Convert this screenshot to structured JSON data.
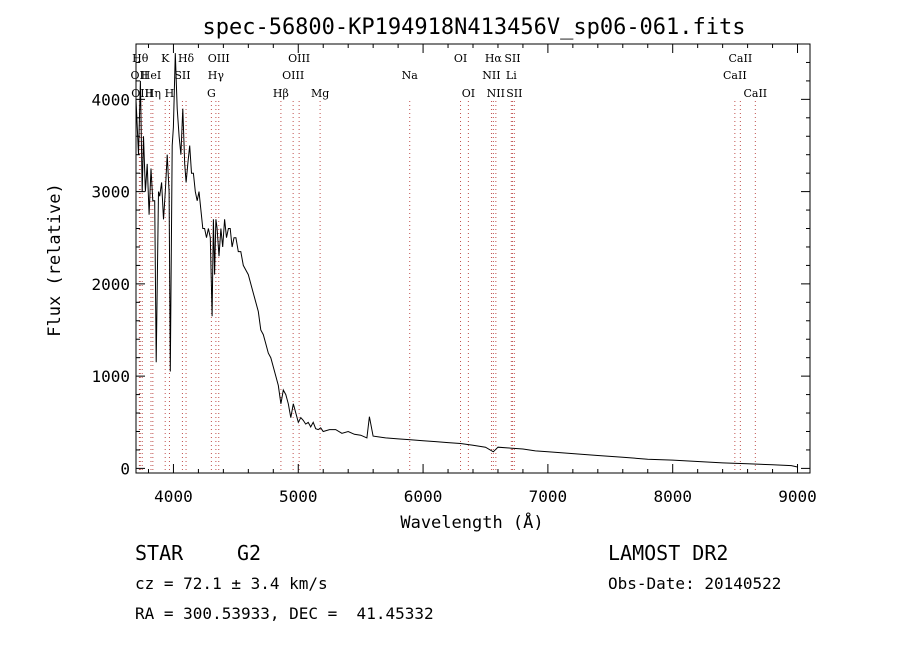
{
  "chart_data": {
    "type": "line",
    "title": "spec-56800-KP194918N413456V_sp06-061.fits",
    "xlabel": "Wavelength (Å)",
    "ylabel": "Flux (relative)",
    "xlim": [
      3700,
      9100
    ],
    "ylim": [
      -50,
      4600
    ],
    "x_ticks": [
      4000,
      5000,
      6000,
      7000,
      8000,
      9000
    ],
    "x_tick_labels": [
      "4000",
      "5000",
      "6000",
      "7000",
      "8000",
      "9000"
    ],
    "y_ticks": [
      0,
      1000,
      2000,
      3000,
      4000
    ],
    "y_tick_labels": [
      "0",
      "1000",
      "2000",
      "3000",
      "4000"
    ],
    "series": [
      {
        "name": "flux",
        "x": [
          3700,
          3720,
          3735,
          3750,
          3760,
          3775,
          3790,
          3805,
          3820,
          3835,
          3850,
          3862,
          3880,
          3890,
          3905,
          3920,
          3935,
          3950,
          3965,
          3975,
          3990,
          4000,
          4015,
          4030,
          4045,
          4060,
          4075,
          4090,
          4101,
          4115,
          4130,
          4145,
          4160,
          4175,
          4190,
          4205,
          4220,
          4235,
          4250,
          4265,
          4280,
          4295,
          4310,
          4320,
          4330,
          4340,
          4350,
          4365,
          4380,
          4395,
          4410,
          4425,
          4440,
          4455,
          4470,
          4485,
          4500,
          4520,
          4540,
          4560,
          4580,
          4600,
          4620,
          4640,
          4660,
          4680,
          4700,
          4720,
          4740,
          4760,
          4780,
          4800,
          4820,
          4840,
          4861,
          4880,
          4900,
          4920,
          4940,
          4960,
          4980,
          5000,
          5020,
          5040,
          5060,
          5080,
          5100,
          5120,
          5140,
          5160,
          5180,
          5200,
          5250,
          5300,
          5350,
          5400,
          5450,
          5500,
          5550,
          5570,
          5600,
          5650,
          5700,
          5800,
          5900,
          6000,
          6100,
          6200,
          6300,
          6400,
          6500,
          6563,
          6600,
          6700,
          6800,
          6900,
          7000,
          7200,
          7400,
          7600,
          7800,
          8000,
          8200,
          8400,
          8600,
          8800,
          8950,
          9000
        ],
        "y": [
          4000,
          3400,
          4200,
          3000,
          3600,
          3000,
          3300,
          2750,
          3250,
          2900,
          2900,
          1150,
          3000,
          2950,
          3100,
          2700,
          3000,
          3400,
          3000,
          1050,
          3500,
          3700,
          4500,
          3900,
          3600,
          3400,
          3900,
          3300,
          3100,
          3300,
          3500,
          3200,
          3200,
          3000,
          2900,
          3000,
          2800,
          2600,
          2600,
          2500,
          2600,
          2500,
          1650,
          2700,
          2100,
          2700,
          2600,
          2300,
          2600,
          2400,
          2700,
          2500,
          2600,
          2600,
          2400,
          2500,
          2500,
          2350,
          2350,
          2200,
          2150,
          2100,
          2000,
          1900,
          1800,
          1700,
          1500,
          1450,
          1350,
          1250,
          1200,
          1100,
          1000,
          900,
          700,
          850,
          800,
          700,
          550,
          700,
          600,
          500,
          550,
          520,
          480,
          500,
          450,
          500,
          430,
          420,
          440,
          400,
          420,
          420,
          380,
          400,
          370,
          360,
          330,
          560,
          350,
          340,
          330,
          320,
          310,
          300,
          290,
          280,
          270,
          250,
          230,
          180,
          230,
          220,
          210,
          190,
          180,
          160,
          140,
          120,
          100,
          90,
          75,
          60,
          50,
          40,
          30,
          15
        ]
      }
    ],
    "lines": [
      {
        "x": 3734,
        "row": 0,
        "label": "Hθ"
      },
      {
        "x": 3727,
        "row": 1,
        "label": "OII"
      },
      {
        "x": 3750,
        "row": 2,
        "label": "OIII"
      },
      {
        "x": 3820,
        "row": 1,
        "label": "HeI"
      },
      {
        "x": 3835,
        "row": 2,
        "label": "Hη"
      },
      {
        "x": 3934,
        "row": 0,
        "label": "K"
      },
      {
        "x": 3968,
        "row": 2,
        "label": "H"
      },
      {
        "x": 4072,
        "row": 1,
        "label": "SII"
      },
      {
        "x": 4101,
        "row": 0,
        "label": "Hδ"
      },
      {
        "x": 4304,
        "row": 2,
        "label": "G"
      },
      {
        "x": 4340,
        "row": 1,
        "label": "Hγ"
      },
      {
        "x": 4363,
        "row": 0,
        "label": "OIII"
      },
      {
        "x": 4861,
        "row": 2,
        "label": "Hβ"
      },
      {
        "x": 4959,
        "row": 1,
        "label": "OIII"
      },
      {
        "x": 5007,
        "row": 0,
        "label": "OIII"
      },
      {
        "x": 5175,
        "row": 2,
        "label": "Mg"
      },
      {
        "x": 5893,
        "row": 1,
        "label": "Na"
      },
      {
        "x": 6300,
        "row": 0,
        "label": "OI"
      },
      {
        "x": 6363,
        "row": 2,
        "label": "OI"
      },
      {
        "x": 6548,
        "row": 1,
        "label": "NII"
      },
      {
        "x": 6563,
        "row": 0,
        "label": "Hα"
      },
      {
        "x": 6583,
        "row": 2,
        "label": "NII"
      },
      {
        "x": 6707,
        "row": 1,
        "label": "Li"
      },
      {
        "x": 6716,
        "row": 0,
        "label": "SII"
      },
      {
        "x": 6731,
        "row": 2,
        "label": "SII"
      },
      {
        "x": 8498,
        "row": 1,
        "label": "CaII"
      },
      {
        "x": 8542,
        "row": 0,
        "label": "CaII"
      },
      {
        "x": 8662,
        "row": 2,
        "label": "CaII"
      }
    ],
    "grid": false
  },
  "info": {
    "object_class": "STAR",
    "subclass": "G2",
    "survey": "LAMOST DR2",
    "redshift": "cz = 72.1 ± 3.4 km/s",
    "obs_date": "Obs-Date: 20140522",
    "coords": "RA = 300.53933, DEC =  41.45332"
  }
}
